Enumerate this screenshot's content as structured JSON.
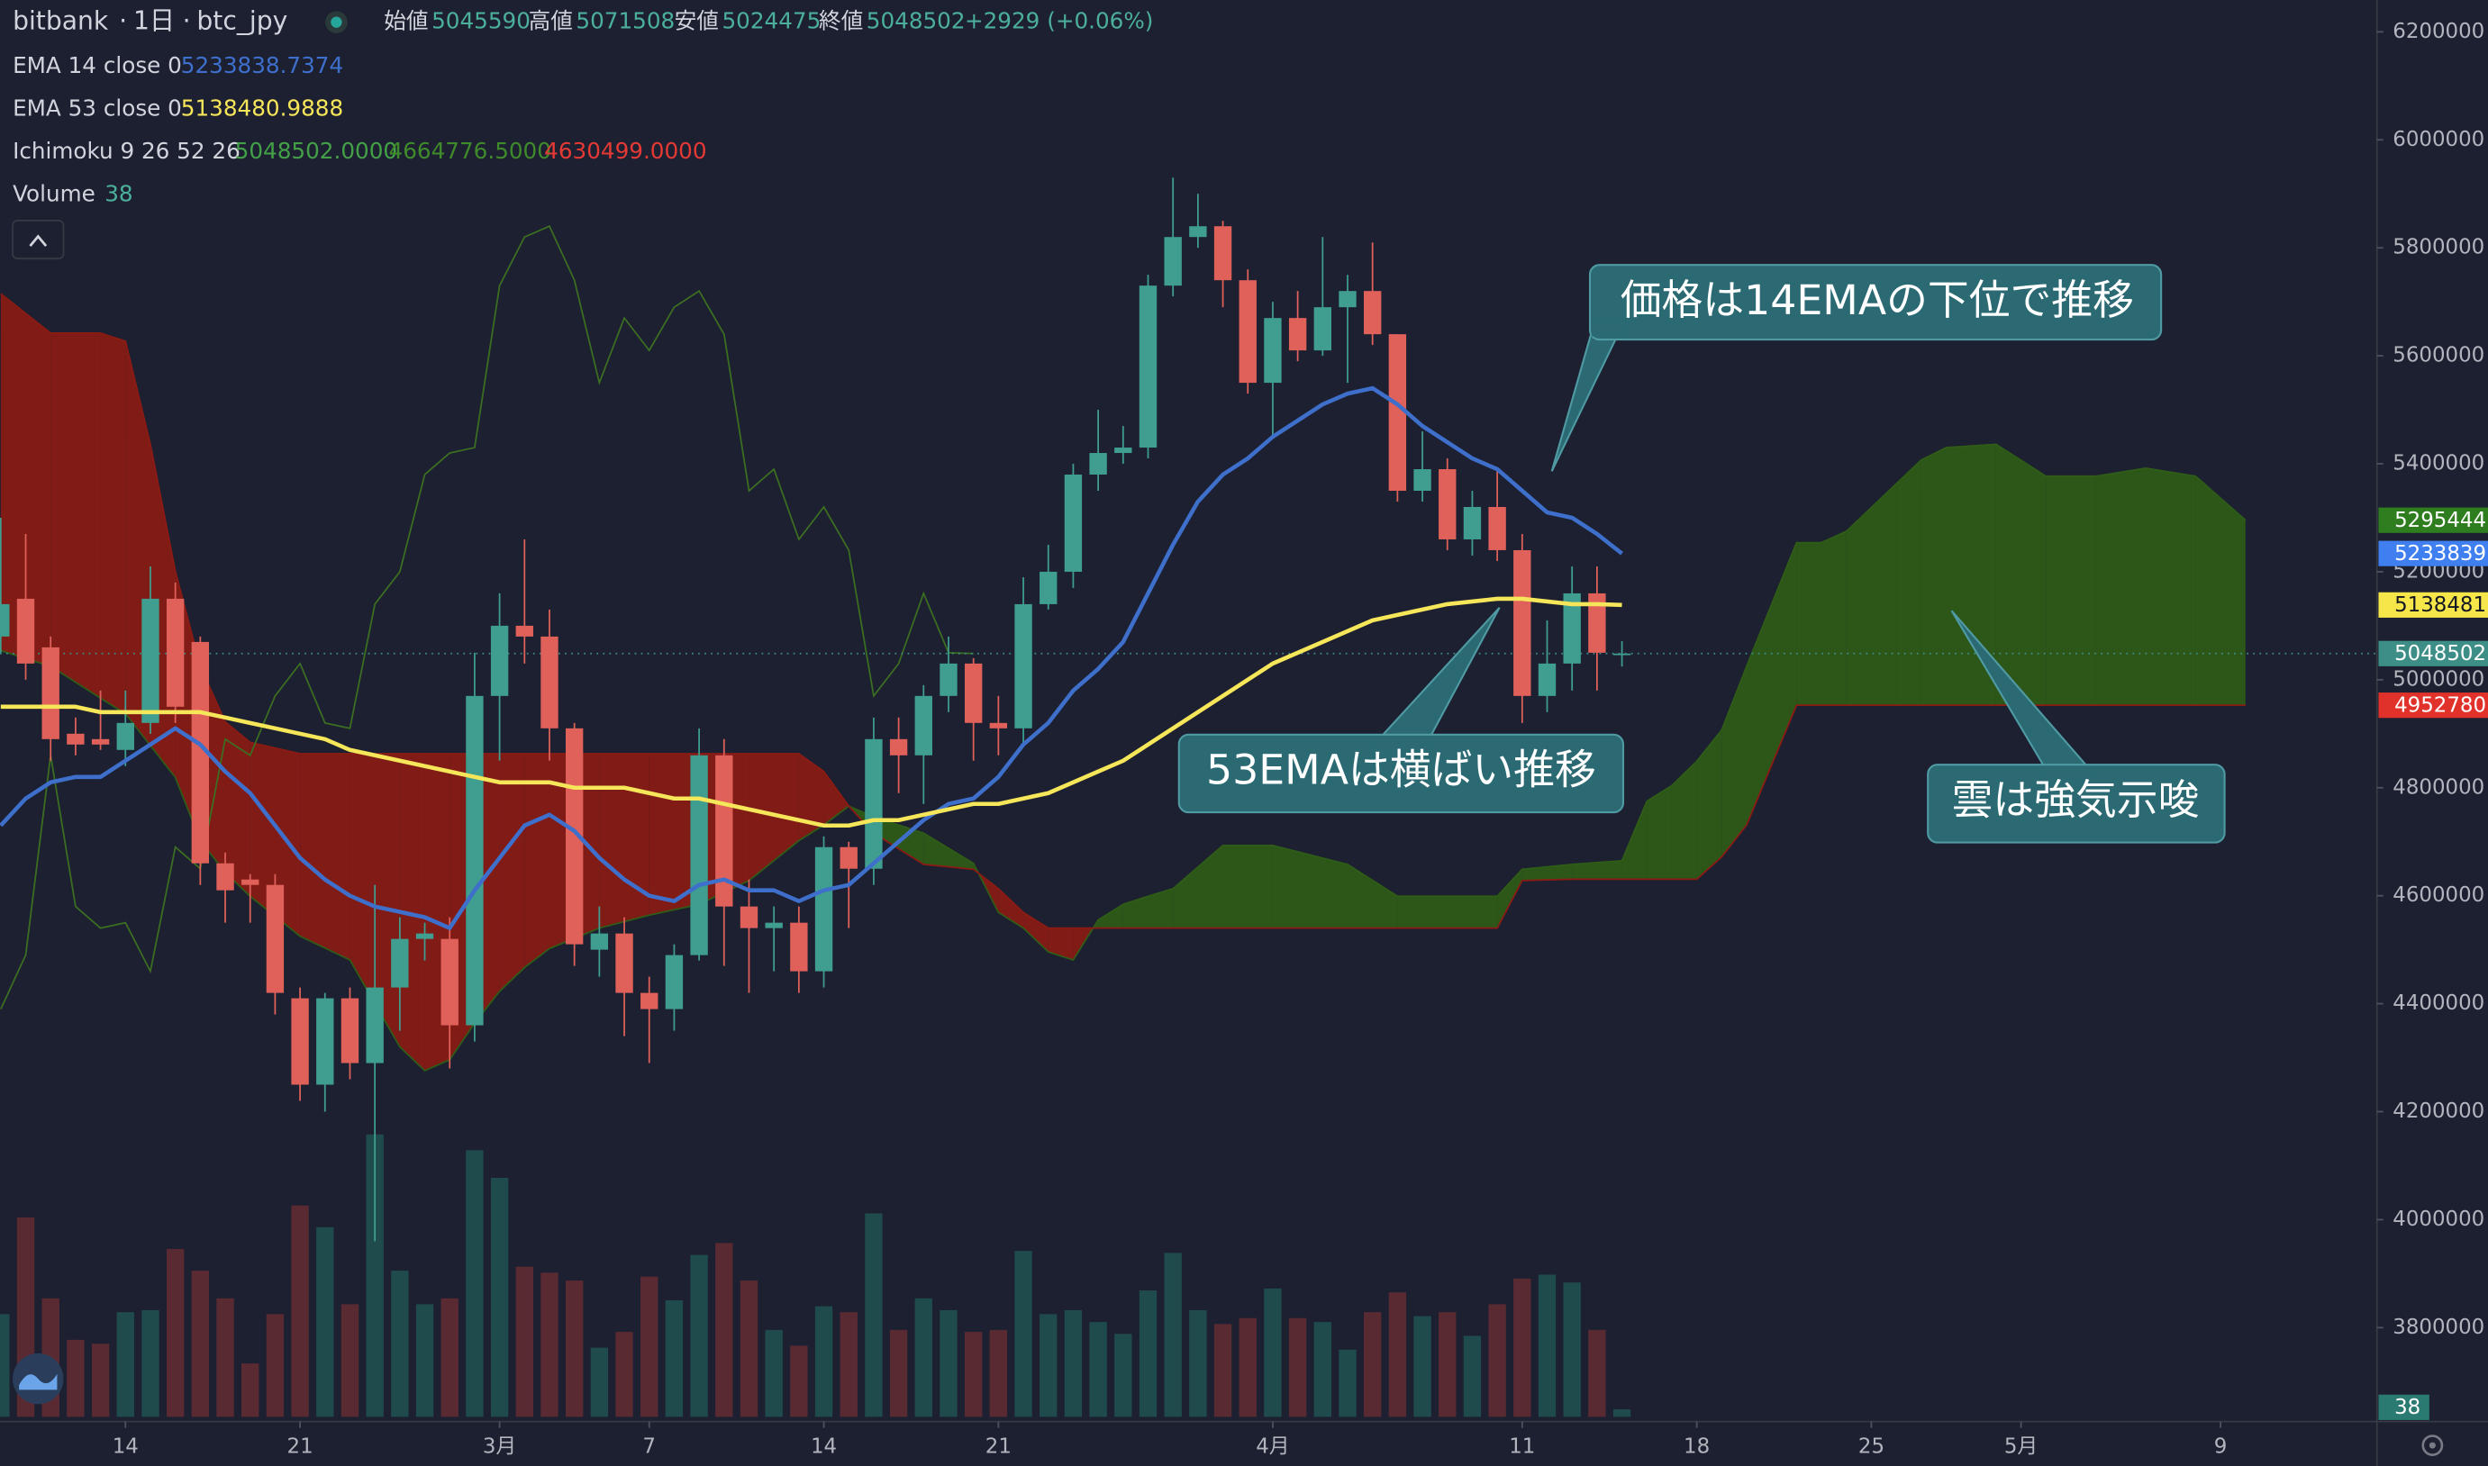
{
  "chart_data": {
    "type": "candlestick",
    "symbol": {
      "exchange": "bitbank",
      "interval": "1日",
      "ticker": "btc_jpy",
      "ohlc_labels": [
        "始値",
        "高値",
        "安値",
        "終値"
      ],
      "ohlc_values": [
        5045590,
        5071508,
        5024475,
        5048502
      ],
      "change": "+2929 (+0.06%)"
    },
    "xlim": [
      -0.03,
      95.27
    ],
    "ylim": [
      3626000,
      6259000
    ],
    "xticks": [
      {
        "value": 5,
        "label": "14"
      },
      {
        "value": 12,
        "label": "21"
      },
      {
        "value": 20,
        "label": "3月"
      },
      {
        "value": 26,
        "label": "7"
      },
      {
        "value": 33,
        "label": "14"
      },
      {
        "value": 40,
        "label": "21"
      },
      {
        "value": 51,
        "label": "4月"
      },
      {
        "value": 61,
        "label": "11"
      },
      {
        "value": 68,
        "label": "18"
      },
      {
        "value": 75,
        "label": "25"
      },
      {
        "value": 81,
        "label": "5月"
      },
      {
        "value": 89,
        "label": "9"
      }
    ],
    "yticks": [
      3800000,
      4000000,
      4200000,
      4400000,
      4600000,
      4800000,
      5000000,
      5200000,
      5400000,
      5600000,
      5800000,
      6000000,
      6200000
    ],
    "candles": {
      "up_color": "#3f9e8f",
      "down_color": "#e0605a",
      "open": [
        5080000,
        5150000,
        5060000,
        4900000,
        4890000,
        4870000,
        4920000,
        5150000,
        5070000,
        4660000,
        4630000,
        4620000,
        4410000,
        4250000,
        4410000,
        4290000,
        4430000,
        4520000,
        4520000,
        4360000,
        4970000,
        5100000,
        5080000,
        4910000,
        4500000,
        4530000,
        4420000,
        4390000,
        4490000,
        4860000,
        4580000,
        4540000,
        4550000,
        4460000,
        4690000,
        4650000,
        4890000,
        4860000,
        4970000,
        5030000,
        4920000,
        4910000,
        5140000,
        5200000,
        5380000,
        5420000,
        5430000,
        5730000,
        5820000,
        5840000,
        5740000,
        5550000,
        5670000,
        5610000,
        5690000,
        5720000,
        5640000,
        5350000,
        5390000,
        5260000,
        5320000,
        5240000,
        4970000,
        5030000,
        5160000,
        5045590
      ],
      "high": [
        5300000,
        5270000,
        5080000,
        4930000,
        4980000,
        4980000,
        5210000,
        5180000,
        5080000,
        4680000,
        4640000,
        4640000,
        4430000,
        4420000,
        4430000,
        4620000,
        4560000,
        4550000,
        4560000,
        5050000,
        5160000,
        5260000,
        5130000,
        4920000,
        4580000,
        4560000,
        4450000,
        4510000,
        4910000,
        4890000,
        4630000,
        4580000,
        4580000,
        4710000,
        4700000,
        4930000,
        4930000,
        4990000,
        5080000,
        5040000,
        4970000,
        5190000,
        5250000,
        5400000,
        5500000,
        5470000,
        5750000,
        5930000,
        5900000,
        5850000,
        5760000,
        5700000,
        5720000,
        5820000,
        5750000,
        5810000,
        5640000,
        5460000,
        5410000,
        5350000,
        5390000,
        5270000,
        5110000,
        5210000,
        5210000,
        5071508
      ],
      "low": [
        5050000,
        5000000,
        4850000,
        4860000,
        4870000,
        4840000,
        4900000,
        4920000,
        4620000,
        4550000,
        4550000,
        4380000,
        4220000,
        4200000,
        4260000,
        3960000,
        4350000,
        4480000,
        4280000,
        4330000,
        4850000,
        5030000,
        4850000,
        4470000,
        4450000,
        4340000,
        4290000,
        4350000,
        4480000,
        4470000,
        4420000,
        4460000,
        4420000,
        4430000,
        4540000,
        4620000,
        4790000,
        4770000,
        4940000,
        4850000,
        4860000,
        4880000,
        5130000,
        5170000,
        5350000,
        5400000,
        5410000,
        5710000,
        5800000,
        5690000,
        5530000,
        5450000,
        5590000,
        5600000,
        5550000,
        5620000,
        5330000,
        5330000,
        5240000,
        5230000,
        5220000,
        4920000,
        4940000,
        4980000,
        4980000,
        5024475
      ],
      "close": [
        5140000,
        5030000,
        4890000,
        4880000,
        4880000,
        4920000,
        5150000,
        4950000,
        4660000,
        4610000,
        4620000,
        4420000,
        4250000,
        4410000,
        4290000,
        4430000,
        4520000,
        4530000,
        4360000,
        4970000,
        5100000,
        5080000,
        4910000,
        4510000,
        4530000,
        4420000,
        4390000,
        4490000,
        4860000,
        4580000,
        4540000,
        4550000,
        4460000,
        4690000,
        4650000,
        4890000,
        4860000,
        4970000,
        5030000,
        4920000,
        4910000,
        5140000,
        5200000,
        5380000,
        5420000,
        5430000,
        5730000,
        5820000,
        5840000,
        5740000,
        5550000,
        5670000,
        5610000,
        5690000,
        5720000,
        5640000,
        5350000,
        5390000,
        5260000,
        5320000,
        5240000,
        4970000,
        5030000,
        5160000,
        5050000,
        5048502
      ]
    },
    "indicators": [
      {
        "name": "EMA 14 close 0",
        "color": "#3e6fcb",
        "values": [
          4730000,
          4780000,
          4810000,
          4820000,
          4820000,
          4850000,
          4880000,
          4910000,
          4880000,
          4830000,
          4790000,
          4730000,
          4670000,
          4630000,
          4600000,
          4580000,
          4570000,
          4560000,
          4540000,
          4610000,
          4670000,
          4730000,
          4750000,
          4720000,
          4670000,
          4630000,
          4600000,
          4590000,
          4620000,
          4630000,
          4610000,
          4610000,
          4590000,
          4610000,
          4620000,
          4660000,
          4700000,
          4740000,
          4770000,
          4780000,
          4820000,
          4880000,
          4920000,
          4980000,
          5020000,
          5070000,
          5160000,
          5250000,
          5330000,
          5380000,
          5410000,
          5450000,
          5480000,
          5510000,
          5530000,
          5540000,
          5510000,
          5470000,
          5440000,
          5410000,
          5390000,
          5350000,
          5310000,
          5300000,
          5270000,
          5233838.7374
        ]
      },
      {
        "name": "EMA 53 close 0",
        "color": "#f6e65a",
        "values": [
          4950000,
          4950000,
          4950000,
          4950000,
          4940000,
          4940000,
          4940000,
          4940000,
          4940000,
          4930000,
          4920000,
          4910000,
          4900000,
          4890000,
          4870000,
          4860000,
          4850000,
          4840000,
          4830000,
          4820000,
          4810000,
          4810000,
          4810000,
          4800000,
          4800000,
          4800000,
          4790000,
          4780000,
          4780000,
          4770000,
          4760000,
          4750000,
          4740000,
          4730000,
          4730000,
          4740000,
          4740000,
          4750000,
          4760000,
          4770000,
          4770000,
          4780000,
          4790000,
          4810000,
          4830000,
          4850000,
          4880000,
          4910000,
          4940000,
          4970000,
          5000000,
          5030000,
          5050000,
          5070000,
          5090000,
          5110000,
          5120000,
          5130000,
          5140000,
          5145000,
          5150000,
          5150000,
          5145000,
          5140000,
          5140000,
          5138480.9888
        ]
      }
    ],
    "ichimoku": {
      "name": "Ichimoku 9 26 52 26",
      "legend_values": [
        "5048502.0000",
        "4664776.5000",
        "4630499.0000"
      ],
      "legend_colors": [
        "#43a047",
        "#3f8a2a",
        "#e53935"
      ],
      "lagging": {
        "color": "#3c6e22",
        "values": [
          4390000,
          4490000,
          4860000,
          4580000,
          4540000,
          4550000,
          4460000,
          4690000,
          4650000,
          4890000,
          4860000,
          4970000,
          5030000,
          4920000,
          4910000,
          5140000,
          5200000,
          5380000,
          5420000,
          5430000,
          5730000,
          5820000,
          5840000,
          5740000,
          5550000,
          5670000,
          5610000,
          5690000,
          5720000,
          5640000,
          5350000,
          5390000,
          5260000,
          5320000,
          5240000,
          4970000,
          5030000,
          5160000,
          5050000,
          5048502
        ]
      },
      "cloud": {
        "bullish_color": "#2f5d17",
        "bearish_color": "#8c1b14",
        "x": [
          0,
          2,
          4,
          5,
          6,
          7,
          8,
          9,
          10,
          12,
          14,
          16,
          17,
          18,
          19,
          20,
          21,
          22,
          24,
          26,
          28,
          30,
          32,
          33,
          34,
          35,
          37,
          39,
          40,
          41,
          42,
          43,
          44,
          45,
          46,
          47,
          49,
          51,
          54,
          56,
          59,
          60,
          61,
          63,
          65,
          66,
          67,
          68,
          69,
          70,
          72,
          73,
          74,
          75,
          76,
          77,
          78,
          80,
          82,
          84,
          86,
          88,
          90
        ],
        "span_a": [
          5054000,
          5025000,
          4966000,
          4937000,
          4878000,
          4819000,
          4702000,
          4643000,
          4599000,
          4525000,
          4481000,
          4320000,
          4276000,
          4296000,
          4364000,
          4423000,
          4467000,
          4502000,
          4540000,
          4564000,
          4584000,
          4628000,
          4702000,
          4731000,
          4766000,
          4746000,
          4716000,
          4660000,
          4569000,
          4540000,
          4496000,
          4481000,
          4555000,
          4584000,
          4599000,
          4613000,
          4693000,
          4693000,
          4658000,
          4599000,
          4599000,
          4599000,
          4649000,
          4658000,
          4664776.5,
          4775000,
          4804000,
          4849000,
          4907000,
          5025000,
          5254000,
          5254000,
          5275000,
          5319000,
          5363000,
          5407000,
          5430000,
          5436000,
          5377000,
          5377000,
          5392000,
          5377000,
          5295444
        ],
        "span_b": [
          5715000,
          5642000,
          5642000,
          5627000,
          5436000,
          5201000,
          5025000,
          4922000,
          4884000,
          4863000,
          4863000,
          4863000,
          4863000,
          4863000,
          4863000,
          4863000,
          4863000,
          4863000,
          4863000,
          4863000,
          4863000,
          4863000,
          4863000,
          4830000,
          4766000,
          4716000,
          4658000,
          4649000,
          4613000,
          4569000,
          4540000,
          4540000,
          4540000,
          4540000,
          4540000,
          4540000,
          4540000,
          4540000,
          4540000,
          4540000,
          4540000,
          4540000,
          4628000,
          4630499,
          4630499,
          4630499,
          4630499,
          4630499,
          4672000,
          4731000,
          4952780,
          4952780,
          4952780,
          4952780,
          4952780,
          4952780,
          4952780,
          4952780,
          4952780,
          4952780,
          4952780,
          4952780,
          4952780
        ]
      }
    },
    "volume": {
      "name": "Volume",
      "up_color": "#1f4b4d",
      "down_color": "#5a2a33",
      "values": [
        520,
        1010,
        600,
        390,
        370,
        530,
        540,
        850,
        740,
        600,
        270,
        520,
        1070,
        960,
        570,
        1430,
        740,
        570,
        600,
        1350,
        1210,
        760,
        730,
        690,
        350,
        430,
        710,
        590,
        820,
        880,
        690,
        440,
        360,
        560,
        530,
        1030,
        440,
        600,
        540,
        430,
        440,
        840,
        520,
        540,
        480,
        420,
        640,
        830,
        540,
        470,
        500,
        650,
        500,
        480,
        340,
        530,
        630,
        510,
        530,
        410,
        570,
        700,
        720,
        680,
        440,
        38
      ]
    },
    "price_labels": [
      {
        "value": 5295444,
        "color": "#2e7d1f"
      },
      {
        "value": 5233839,
        "color": "#3f7ff0"
      },
      {
        "value": 5138481,
        "color": "#f7e64a"
      },
      {
        "value": 5048502,
        "color": "#3c8e86"
      },
      {
        "value": 4952780,
        "color": "#e0322a"
      }
    ],
    "annotations": [
      "価格は14EMAの下位で推移",
      "53EMAは横ばい推移",
      "雲は強気示唆"
    ]
  }
}
